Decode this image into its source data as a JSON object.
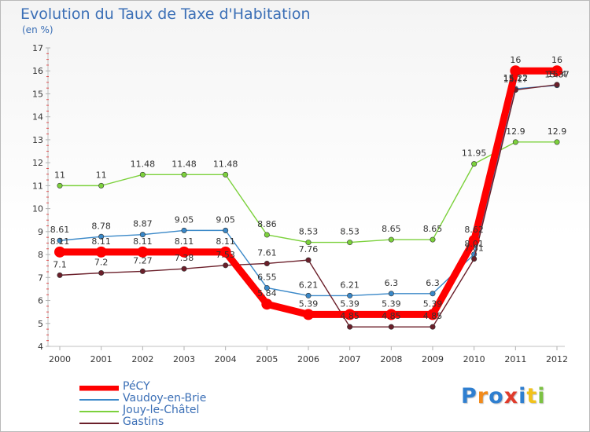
{
  "header": {
    "title": "Evolution du Taux de Taxe d'Habitation",
    "unit": "(en %)"
  },
  "logo": {
    "text": "Proxiti"
  },
  "chart_data": {
    "type": "line",
    "title": "Evolution du Taux de Taxe d'Habitation",
    "ylabel": "(en %)",
    "xlabel": "",
    "x": [
      "2000",
      "2001",
      "2002",
      "2003",
      "2004",
      "2005",
      "2006",
      "2007",
      "2008",
      "2009",
      "2010",
      "2011",
      "2012"
    ],
    "ylim": [
      4,
      17
    ],
    "yticks": [
      4,
      5,
      6,
      7,
      8,
      9,
      10,
      11,
      12,
      13,
      14,
      15,
      16,
      17
    ],
    "grid": false,
    "legend_position": "bottom-left",
    "series": [
      {
        "name": "PéCY",
        "color": "#ff0000",
        "values": [
          8.11,
          8.11,
          8.11,
          8.11,
          8.11,
          5.84,
          5.39,
          5.39,
          5.39,
          5.39,
          8.62,
          16,
          16
        ],
        "labels": [
          "8.11",
          "8.11",
          "8.11",
          "8.11",
          "8.11",
          "5.84",
          "5.39",
          "5.39",
          "5.39",
          "5.39",
          "8.62",
          "16",
          "16"
        ]
      },
      {
        "name": "Vaudoy-en-Brie",
        "color": "#3a88c8",
        "values": [
          8.61,
          8.78,
          8.87,
          9.05,
          9.05,
          6.55,
          6.21,
          6.21,
          6.3,
          6.3,
          8.01,
          15.22,
          15.37
        ],
        "labels": [
          "8.61",
          "8.78",
          "8.87",
          "9.05",
          "9.05",
          "6.55",
          "6.21",
          "6.21",
          "6.3",
          "6.3",
          "8.01",
          "15.22",
          "15.37"
        ]
      },
      {
        "name": "Jouy-le-Châtel",
        "color": "#7cd13c",
        "values": [
          11,
          11,
          11.48,
          11.48,
          11.48,
          8.86,
          8.53,
          8.53,
          8.65,
          8.65,
          11.95,
          12.9,
          12.9
        ],
        "labels": [
          "11",
          "11",
          "11.48",
          "11.48",
          "11.48",
          "8.86",
          "8.53",
          "8.53",
          "8.65",
          "8.65",
          "11.95",
          "12.9",
          "12.9"
        ]
      },
      {
        "name": "Gastins",
        "color": "#6b1f2a",
        "values": [
          7.1,
          7.2,
          7.27,
          7.38,
          7.53,
          7.61,
          7.76,
          4.85,
          4.85,
          4.85,
          7.81,
          15.17,
          15.4
        ],
        "labels": [
          "7.1",
          "7.2",
          "7.27",
          "7.38",
          "7.53",
          "7.61",
          "7.76",
          "4.85",
          "4.85",
          "4.85",
          "7.81",
          "15.17",
          "15.4"
        ]
      }
    ]
  }
}
